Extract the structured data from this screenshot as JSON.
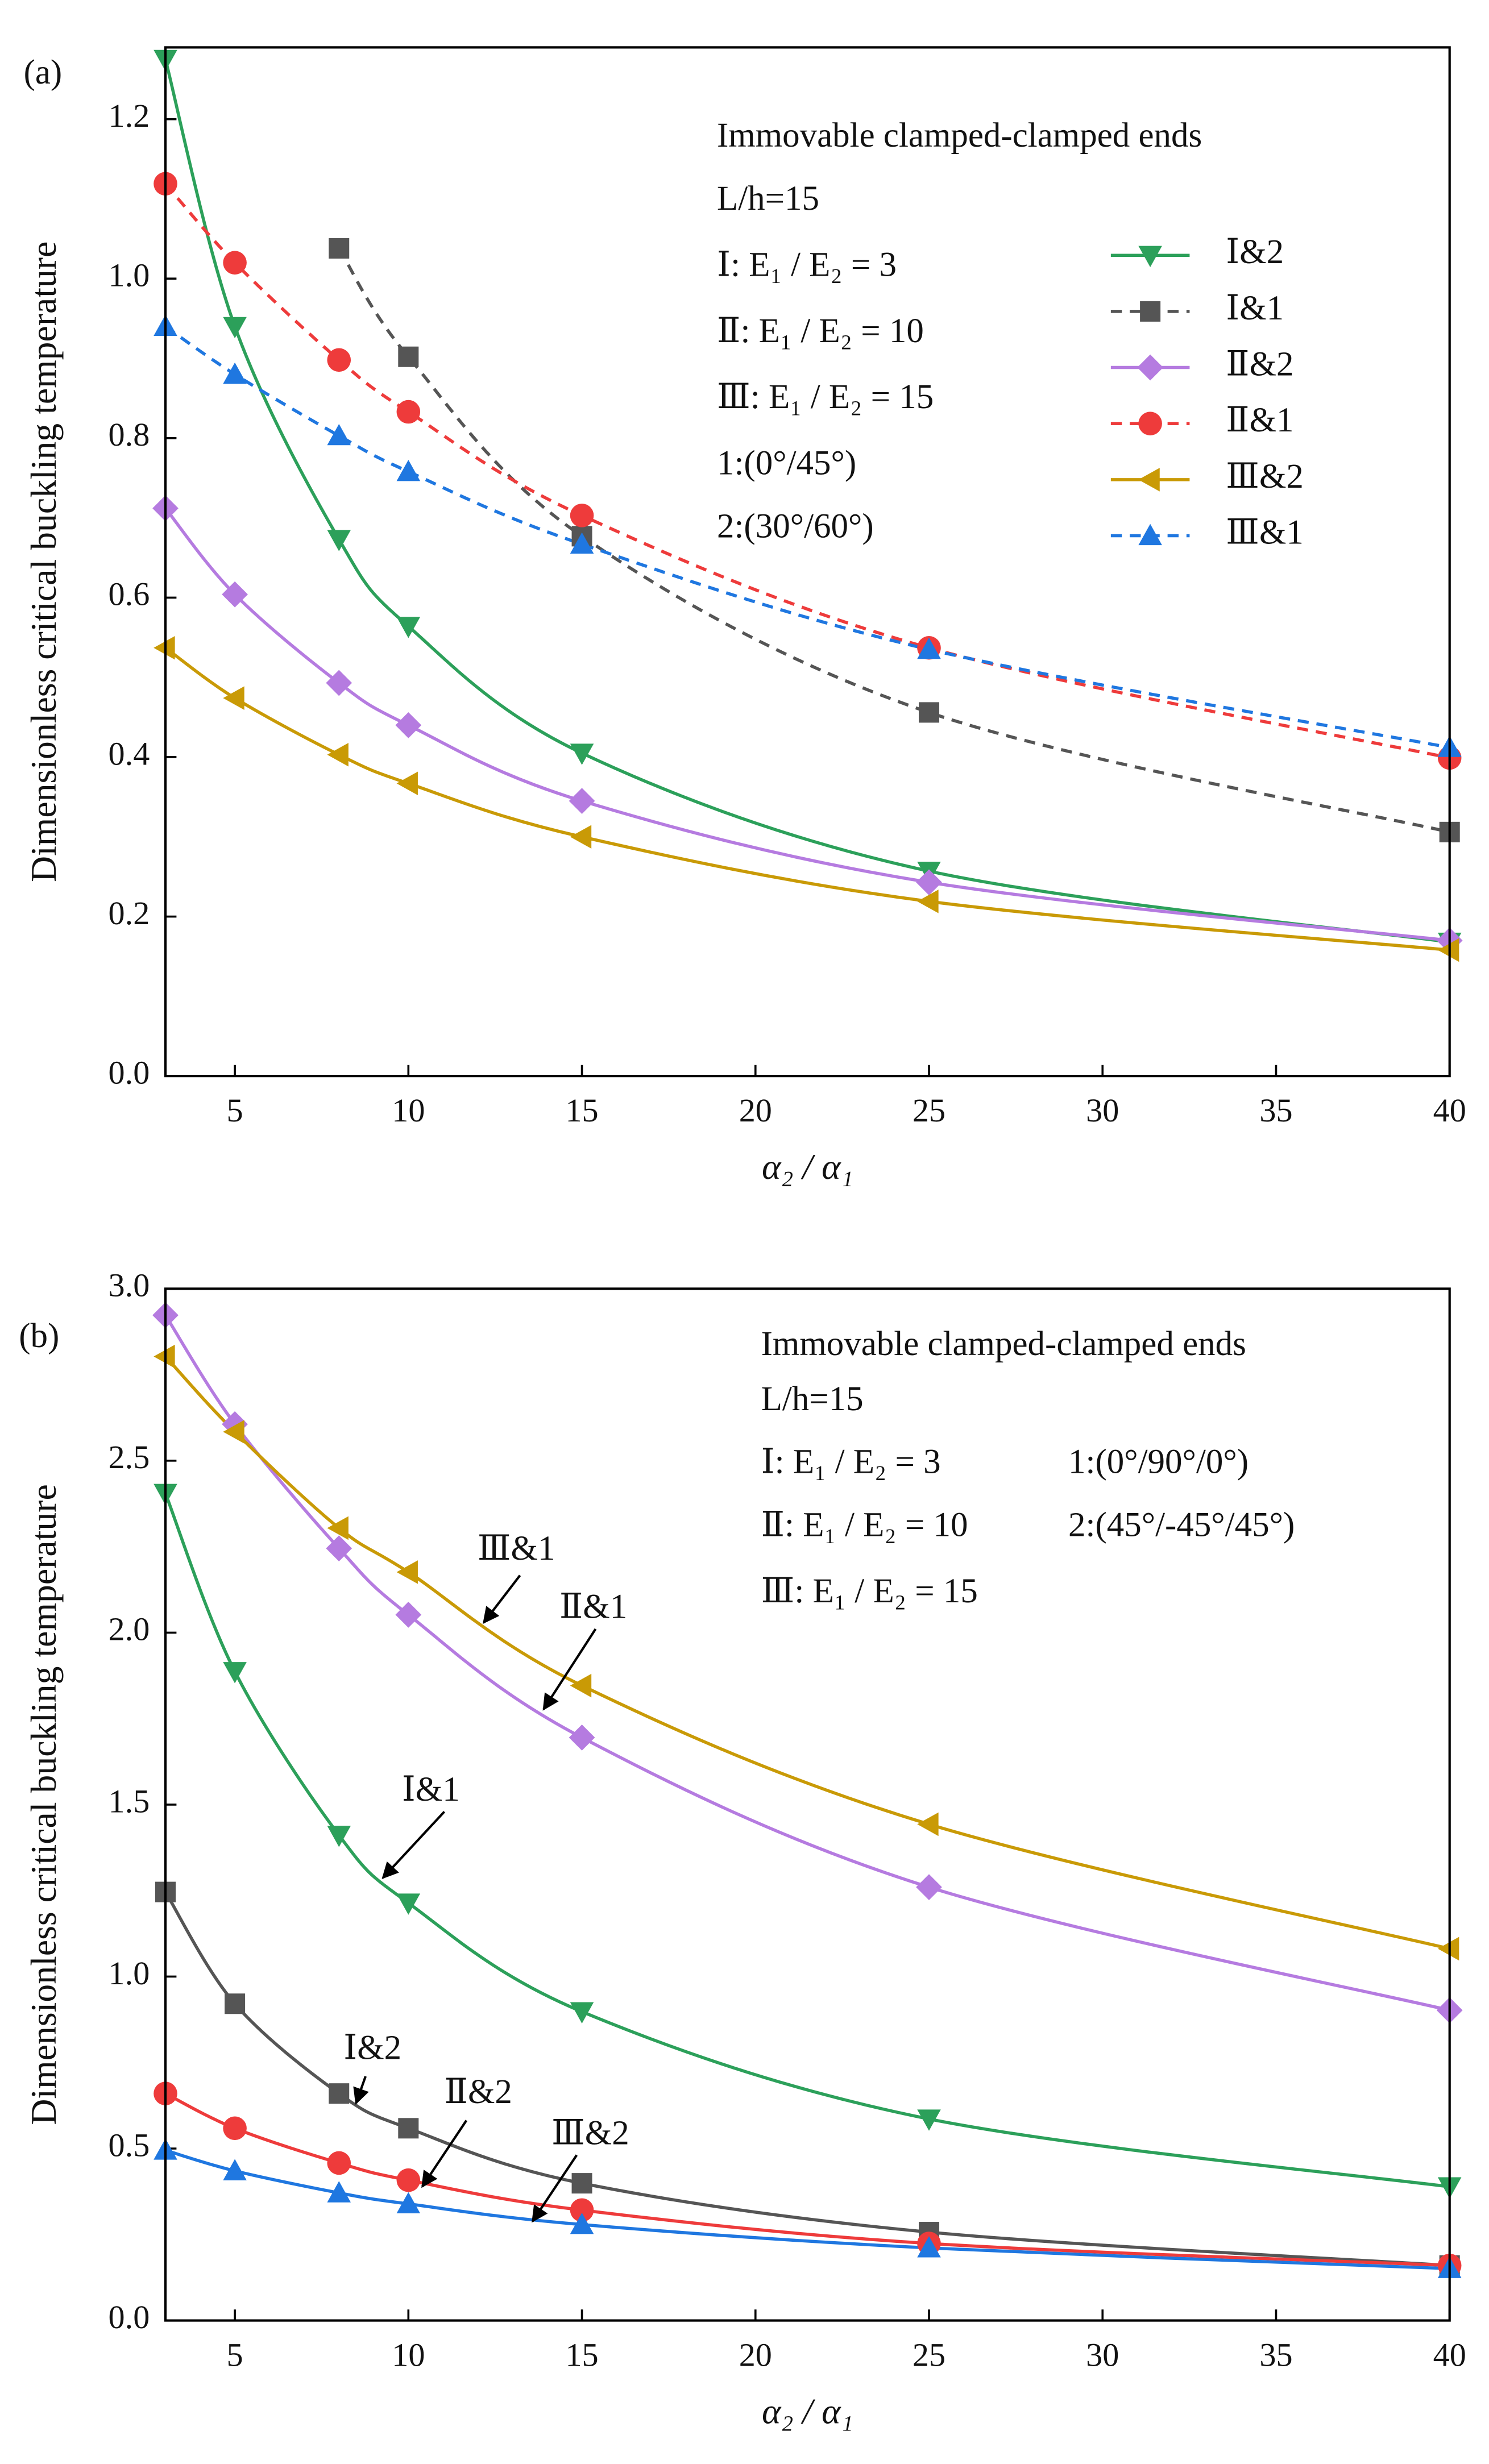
{
  "chart_data": [
    {
      "type": "line",
      "annotations": [
        "(a)",
        "Immovable  clamped-clamped ends",
        "L/h=15",
        "Ⅰ: E₁ / E₂ = 3",
        "Ⅱ: E₁ / E₂ = 10",
        "Ⅲ: E₁ / E₂ = 15",
        "1:(0°/45°)",
        "2:(30°/60°)"
      ],
      "xlabel": "α₂ / α₁",
      "ylabel": "Dimensionless critical buckling temperature",
      "x": [
        3,
        5,
        8,
        10,
        15,
        25,
        40
      ],
      "xlim": [
        3,
        40
      ],
      "xticks": [
        5,
        10,
        15,
        20,
        25,
        30,
        35,
        40
      ],
      "ylim": [
        0,
        1.29
      ],
      "yticks": [
        {
          "value": 0,
          "label": "0.0"
        },
        0.2,
        0.4,
        0.6,
        0.8,
        {
          "value": 1,
          "label": "1.0"
        },
        1.2
      ],
      "legend": "right",
      "grid": false,
      "series": [
        {
          "name": "Ⅰ&2",
          "color": "#2ca05a",
          "marker": "triangle-down",
          "linestyle": "solid",
          "values": [
            1.275,
            0.94,
            0.673,
            0.564,
            0.405,
            0.257,
            0.168
          ]
        },
        {
          "name": "Ⅰ&1",
          "color": "#555555",
          "marker": "square",
          "linestyle": "dashed",
          "values": [
            null,
            null,
            1.038,
            0.902,
            0.677,
            0.456,
            0.306
          ]
        },
        {
          "name": "Ⅱ&2",
          "color": "#b57be0",
          "marker": "diamond",
          "linestyle": "solid",
          "values": [
            0.712,
            0.604,
            0.493,
            0.44,
            0.345,
            0.243,
            0.17
          ]
        },
        {
          "name": "Ⅱ&1",
          "color": "#ee3b3b",
          "marker": "circle",
          "linestyle": "dashed",
          "values": [
            1.119,
            1.02,
            0.898,
            0.833,
            0.703,
            0.537,
            0.399
          ]
        },
        {
          "name": "Ⅲ&2",
          "color": "#c99a06",
          "marker": "triangle-left",
          "linestyle": "solid",
          "values": [
            0.537,
            0.474,
            0.403,
            0.367,
            0.3,
            0.219,
            0.158
          ]
        },
        {
          "name": "Ⅲ&1",
          "color": "#1f77e0",
          "marker": "triangle-up",
          "linestyle": "dashed",
          "values": [
            0.94,
            0.88,
            0.803,
            0.758,
            0.667,
            0.535,
            0.412
          ]
        }
      ]
    },
    {
      "type": "line",
      "annotations": [
        "(b)",
        "Immovable  clamped-clamped ends",
        "L/h=15",
        "Ⅰ: E₁ / E₂ = 3",
        "Ⅱ: E₁ / E₂ = 10",
        "Ⅲ: E₁ / E₂ = 15",
        "1:(0°/90°/0°)",
        "2:(45°/-45°/45°)"
      ],
      "xlabel": "α₂ / α₁",
      "ylabel": "Dimensionless critical buckling temperature",
      "x": [
        3,
        5,
        8,
        10,
        15,
        25,
        40
      ],
      "xlim": [
        3,
        40
      ],
      "xticks": [
        5,
        10,
        15,
        20,
        25,
        30,
        35,
        40
      ],
      "ylim": [
        0,
        3
      ],
      "yticks": [
        {
          "value": 0,
          "label": "0.0"
        },
        0.5,
        {
          "value": 1,
          "label": "1.0"
        },
        1.5,
        {
          "value": 2,
          "label": "2.0"
        },
        2.5,
        {
          "value": 3,
          "label": "3.0"
        }
      ],
      "legend": false,
      "grid": false,
      "series": [
        {
          "name": "Ⅰ&1",
          "color": "#2ca05a",
          "marker": "triangle-down",
          "linestyle": "solid",
          "values": [
            2.405,
            1.887,
            1.411,
            1.214,
            0.898,
            0.586,
            0.389
          ]
        },
        {
          "name": "Ⅰ&2",
          "color": "#555555",
          "marker": "square",
          "linestyle": "solid",
          "values": [
            1.246,
            0.921,
            0.66,
            0.559,
            0.399,
            0.257,
            0.16
          ]
        },
        {
          "name": "Ⅱ&1",
          "color": "#b57be0",
          "marker": "diamond",
          "linestyle": "solid",
          "values": [
            2.923,
            2.606,
            2.245,
            2.052,
            1.695,
            1.26,
            0.902
          ]
        },
        {
          "name": "Ⅱ&2",
          "color": "#ee3b3b",
          "marker": "circle",
          "linestyle": "solid",
          "values": [
            0.66,
            0.559,
            0.458,
            0.408,
            0.321,
            0.224,
            0.16
          ]
        },
        {
          "name": "Ⅲ&1",
          "color": "#c99a06",
          "marker": "triangle-left",
          "linestyle": "solid",
          "values": [
            2.803,
            2.584,
            2.304,
            2.176,
            1.846,
            1.443,
            1.081
          ]
        },
        {
          "name": "Ⅲ&2",
          "color": "#1f77e0",
          "marker": "triangle-up",
          "linestyle": "solid",
          "values": [
            0.495,
            0.435,
            0.371,
            0.339,
            0.279,
            0.211,
            0.151
          ]
        }
      ]
    }
  ]
}
